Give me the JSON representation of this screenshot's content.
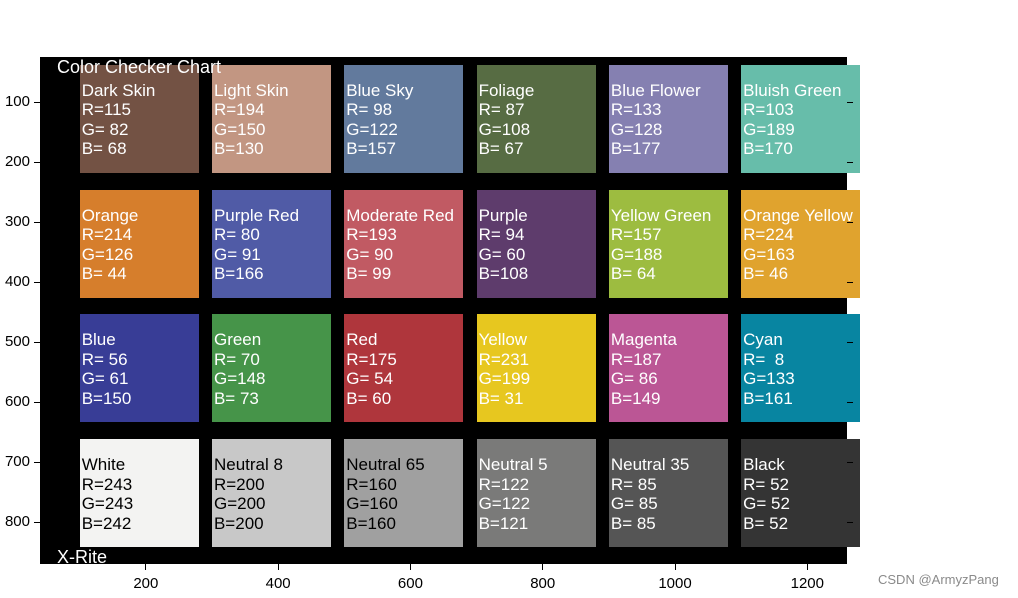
{
  "chart_data": {
    "type": "heatmap",
    "title": "Color Checker Chart",
    "caption": "X-Rite",
    "xlim": [
      40,
      1260
    ],
    "ylim": [
      870,
      25
    ],
    "x_ticks": [
      200,
      400,
      600,
      800,
      1000,
      1200
    ],
    "y_ticks": [
      100,
      200,
      300,
      400,
      500,
      600,
      700,
      800
    ],
    "patch_width": 180,
    "patch_height": 180,
    "patches": [
      {
        "name": "Dark Skin",
        "r": 115,
        "g": 82,
        "b": 68,
        "col": 0,
        "row": 0,
        "text_color": "#ffffff"
      },
      {
        "name": "Light Skin",
        "r": 194,
        "g": 150,
        "b": 130,
        "col": 1,
        "row": 0,
        "text_color": "#ffffff"
      },
      {
        "name": "Blue Sky",
        "r": 98,
        "g": 122,
        "b": 157,
        "col": 2,
        "row": 0,
        "text_color": "#ffffff"
      },
      {
        "name": "Foliage",
        "r": 87,
        "g": 108,
        "b": 67,
        "col": 3,
        "row": 0,
        "text_color": "#ffffff"
      },
      {
        "name": "Blue Flower",
        "r": 133,
        "g": 128,
        "b": 177,
        "col": 4,
        "row": 0,
        "text_color": "#ffffff"
      },
      {
        "name": "Bluish Green",
        "r": 103,
        "g": 189,
        "b": 170,
        "col": 5,
        "row": 0,
        "text_color": "#ffffff"
      },
      {
        "name": "Orange",
        "r": 214,
        "g": 126,
        "b": 44,
        "col": 0,
        "row": 1,
        "text_color": "#ffffff"
      },
      {
        "name": "Purple Red",
        "r": 80,
        "g": 91,
        "b": 166,
        "col": 1,
        "row": 1,
        "text_color": "#ffffff"
      },
      {
        "name": "Moderate Red",
        "r": 193,
        "g": 90,
        "b": 99,
        "col": 2,
        "row": 1,
        "text_color": "#ffffff"
      },
      {
        "name": "Purple",
        "r": 94,
        "g": 60,
        "b": 108,
        "col": 3,
        "row": 1,
        "text_color": "#ffffff"
      },
      {
        "name": "Yellow Green",
        "r": 157,
        "g": 188,
        "b": 64,
        "col": 4,
        "row": 1,
        "text_color": "#ffffff"
      },
      {
        "name": "Orange Yellow",
        "r": 224,
        "g": 163,
        "b": 46,
        "col": 5,
        "row": 1,
        "text_color": "#ffffff"
      },
      {
        "name": "Blue",
        "r": 56,
        "g": 61,
        "b": 150,
        "col": 0,
        "row": 2,
        "text_color": "#ffffff"
      },
      {
        "name": "Green",
        "r": 70,
        "g": 148,
        "b": 73,
        "col": 1,
        "row": 2,
        "text_color": "#ffffff"
      },
      {
        "name": "Red",
        "r": 175,
        "g": 54,
        "b": 60,
        "col": 2,
        "row": 2,
        "text_color": "#ffffff"
      },
      {
        "name": "Yellow",
        "r": 231,
        "g": 199,
        "b": 31,
        "col": 3,
        "row": 2,
        "text_color": "#ffffff"
      },
      {
        "name": "Magenta",
        "r": 187,
        "g": 86,
        "b": 149,
        "col": 4,
        "row": 2,
        "text_color": "#ffffff"
      },
      {
        "name": "Cyan",
        "r": 8,
        "g": 133,
        "b": 161,
        "col": 5,
        "row": 2,
        "text_color": "#ffffff"
      },
      {
        "name": "White",
        "r": 243,
        "g": 243,
        "b": 242,
        "col": 0,
        "row": 3,
        "text_color": "#000000"
      },
      {
        "name": "Neutral 8",
        "r": 200,
        "g": 200,
        "b": 200,
        "col": 1,
        "row": 3,
        "text_color": "#000000"
      },
      {
        "name": "Neutral 65",
        "r": 160,
        "g": 160,
        "b": 160,
        "col": 2,
        "row": 3,
        "text_color": "#000000"
      },
      {
        "name": "Neutral 5",
        "r": 122,
        "g": 122,
        "b": 121,
        "col": 3,
        "row": 3,
        "text_color": "#ffffff"
      },
      {
        "name": "Neutral 35",
        "r": 85,
        "g": 85,
        "b": 85,
        "col": 4,
        "row": 3,
        "text_color": "#ffffff"
      },
      {
        "name": "Black",
        "r": 52,
        "g": 52,
        "b": 52,
        "col": 5,
        "row": 3,
        "text_color": "#ffffff"
      }
    ]
  },
  "watermark": "CSDN @ArmyzPang"
}
